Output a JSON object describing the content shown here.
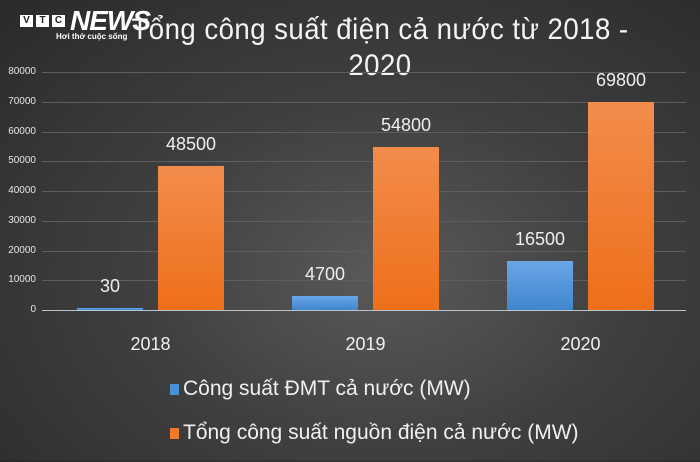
{
  "logo": {
    "letters": [
      "V",
      "T",
      "C"
    ],
    "brand": "NEWS",
    "tagline": "Hơi thở cuộc sống"
  },
  "colors": {
    "series_solar": "#4a90d9",
    "series_total": "#f07a2a",
    "background": "#3f3f3f"
  },
  "chart_data": {
    "type": "bar",
    "title": "Tổng công suất điện cả nước từ 2018 - 2020",
    "xlabel": "",
    "ylabel": "",
    "categories": [
      "2018",
      "2019",
      "2020"
    ],
    "series": [
      {
        "name": "Công suất ĐMT cả nước (MW)",
        "values": [
          30,
          4700,
          16500
        ],
        "color": "#4a90d9"
      },
      {
        "name": "Tổng công suất nguồn điện cả nước (MW)",
        "values": [
          48500,
          54800,
          69800
        ],
        "color": "#f07a2a"
      }
    ],
    "ylim": [
      0,
      80000
    ],
    "yticks": [
      "0",
      "10000",
      "20000",
      "30000",
      "40000",
      "50000",
      "60000",
      "70000",
      "80000"
    ],
    "data_labels": [
      [
        "30",
        "4700",
        "16500"
      ],
      [
        "48500",
        "54800",
        "69800"
      ]
    ],
    "grid": true,
    "legend_position": "bottom"
  }
}
